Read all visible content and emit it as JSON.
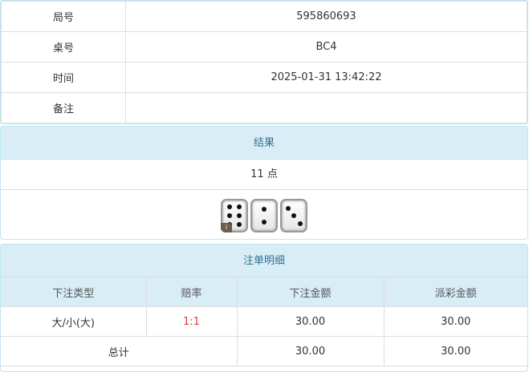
{
  "info": {
    "rows": [
      {
        "label": "局号",
        "value": "595860693"
      },
      {
        "label": "桌号",
        "value": "BC4"
      },
      {
        "label": "时间",
        "value": "2025-01-31 13:42:22"
      },
      {
        "label": "备注",
        "value": ""
      }
    ]
  },
  "result": {
    "title": "结果",
    "points": "11 点",
    "dice": [
      6,
      2,
      3
    ],
    "badge": "i"
  },
  "bets": {
    "title": "注单明细",
    "headers": [
      "下注类型",
      "赔率",
      "下注金额",
      "派彩金额"
    ],
    "rows": [
      {
        "type": "大/小(大)",
        "odds": "1:1",
        "amount": "30.00",
        "payout": "30.00"
      }
    ],
    "total": {
      "label": "总计",
      "amount": "30.00",
      "payout": "30.00"
    }
  },
  "colors": {
    "header_bg": "#d9edf7",
    "header_text": "#31708f",
    "odds": "#e4393c"
  }
}
